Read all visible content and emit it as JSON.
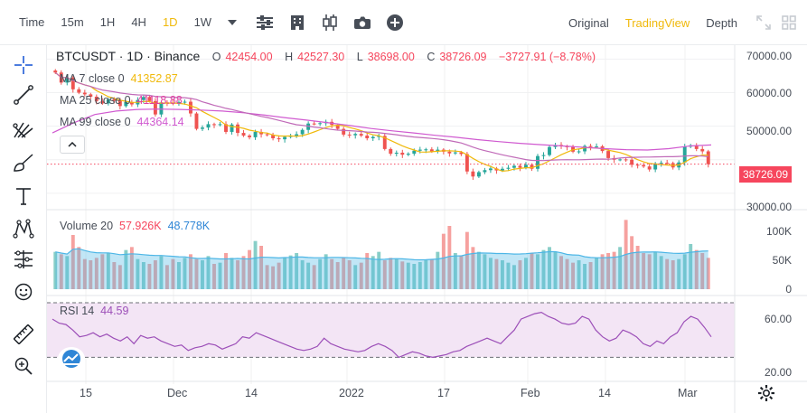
{
  "toolbar": {
    "intervals": [
      "Time",
      "15m",
      "1H",
      "4H",
      "1D",
      "1W"
    ],
    "active_interval": "1D",
    "views": [
      "Original",
      "TradingView",
      "Depth"
    ],
    "active_view": "TradingView",
    "tool_icons": [
      "dropdown-caret-icon",
      "indicator-settings-icon",
      "chart-type-icon",
      "candle-style-icon",
      "camera-icon",
      "add-icon"
    ],
    "right_icons": [
      "fullscreen-icon",
      "layout-grid-icon"
    ]
  },
  "drawing_tools": [
    "crosshair-icon",
    "trend-line-icon",
    "pitchfork-icon",
    "brush-icon",
    "text-icon",
    "pattern-icon",
    "prediction-icon",
    "emoji-icon",
    "ruler-icon",
    "zoom-in-icon"
  ],
  "legend": {
    "symbol": "BTCUSDT · 1D · Binance",
    "o_label": "O",
    "o_value": "42454.00",
    "h_label": "H",
    "h_value": "42527.30",
    "l_label": "L",
    "l_value": "38698.00",
    "c_label": "C",
    "c_value": "38726.09",
    "change": "−3727.91 (−8.78%)",
    "ma7_label": "MA 7 close 0",
    "ma7_value": "41352.87",
    "ma25_label": "MA 25 close 0",
    "ma25_value": "41118.88",
    "ma99_label": "MA 99 close 0",
    "ma99_value": "44364.14",
    "volume_label": "Volume 20",
    "volume_value1": "57.926K",
    "volume_value2": "48.778K",
    "rsi_label": "RSI 14",
    "rsi_value": "44.59"
  },
  "colors": {
    "up": "#26a69a",
    "down": "#ef5350",
    "ma7": "#f0b90b",
    "ma25": "#e040a0",
    "ma99": "#d05ad0",
    "vol_ma": "#4db6e6",
    "rsi": "#9c4fb8",
    "rsi_band": "#f3e5f5",
    "price_tag": "#f6465d"
  },
  "price_axis": {
    "ticks": [
      "70000.00",
      "60000.00",
      "50000.00",
      "30000.00"
    ],
    "current": "38726.09"
  },
  "volume_axis": {
    "ticks": [
      "100K",
      "50K",
      "0"
    ]
  },
  "rsi_axis": {
    "ticks": [
      "60.00",
      "20.00"
    ]
  },
  "time_axis": {
    "ticks": [
      "15",
      "Dec",
      "14",
      "2022",
      "17",
      "Feb",
      "14",
      "Mar"
    ]
  },
  "chart_data": {
    "type": "candlestick",
    "closes": [
      66000,
      63000,
      64500,
      61000,
      60000,
      59500,
      58800,
      57500,
      56800,
      58000,
      57600,
      56000,
      57200,
      56500,
      57800,
      58700,
      57500,
      53500,
      57100,
      57000,
      56700,
      57200,
      57300,
      53800,
      49200,
      49600,
      50600,
      50400,
      50600,
      48300,
      50500,
      48000,
      47200,
      46700,
      48300,
      47600,
      47400,
      46400,
      46100,
      46800,
      47100,
      47600,
      48900,
      50800,
      50700,
      50900,
      51300,
      50400,
      49200,
      47500,
      47300,
      47700,
      47200,
      46400,
      46800,
      47100,
      43200,
      41800,
      42100,
      41500,
      41800,
      42700,
      43000,
      43100,
      42500,
      43000,
      42400,
      41900,
      42200,
      41700,
      36500,
      35000,
      36300,
      36900,
      37400,
      36800,
      37300,
      37600,
      38200,
      37600,
      38500,
      37300,
      41100,
      41400,
      43800,
      44400,
      44000,
      43800,
      42400,
      42500,
      44100,
      43800,
      44000,
      42600,
      40500,
      40000,
      40100,
      40000,
      38500,
      38400,
      38000,
      37100,
      38900,
      39100,
      39000,
      37700,
      39200,
      43900,
      44300,
      43200,
      42500,
      38700
    ],
    "ma99": [
      48000,
      51000,
      53500,
      54500,
      55000,
      55100,
      55000,
      54800,
      54500,
      54000,
      53300,
      52500,
      51800,
      51000,
      50200,
      49300,
      48600,
      48000,
      47300,
      46700,
      46000,
      45400,
      44900,
      44500,
      44100,
      43700,
      43300,
      43000,
      42900,
      43300,
      44100,
      44400
    ],
    "volume": [
      62,
      58,
      55,
      90,
      70,
      50,
      48,
      52,
      58,
      60,
      45,
      40,
      65,
      70,
      50,
      45,
      42,
      48,
      55,
      40,
      50,
      45,
      52,
      58,
      50,
      48,
      55,
      42,
      44,
      60,
      52,
      48,
      55,
      65,
      80,
      72,
      40,
      38,
      44,
      52,
      56,
      60,
      48,
      44,
      40,
      50,
      58,
      50,
      45,
      52,
      48,
      40,
      44,
      60,
      55,
      62,
      48,
      52,
      50,
      46,
      44,
      42,
      45,
      48,
      50,
      62,
      92,
      105,
      60,
      55,
      95,
      70,
      62,
      58,
      52,
      50,
      48,
      44,
      40,
      48,
      52,
      60,
      58,
      65,
      70,
      62,
      55,
      50,
      44,
      48,
      42,
      45,
      52,
      58,
      60,
      62,
      70,
      115,
      88,
      72,
      60,
      58,
      62,
      55,
      50,
      48,
      50,
      58,
      75,
      65,
      60,
      52
    ],
    "rsi": [
      58,
      55,
      54,
      50,
      45,
      46,
      48,
      45,
      47,
      44,
      42,
      45,
      40,
      46,
      44,
      45,
      42,
      40,
      38,
      39,
      35,
      37,
      38,
      40,
      39,
      36,
      38,
      40,
      45,
      44,
      48,
      46,
      44,
      42,
      40,
      38,
      36,
      35,
      36,
      38,
      44,
      40,
      38,
      36,
      35,
      34,
      35,
      38,
      40,
      38,
      35,
      30,
      32,
      34,
      33,
      31,
      30,
      31,
      32,
      34,
      35,
      38,
      40,
      42,
      44,
      42,
      40,
      45,
      50,
      58,
      60,
      62,
      63,
      60,
      58,
      55,
      54,
      55,
      60,
      58,
      50,
      45,
      42,
      44,
      50,
      48,
      45,
      40,
      38,
      42,
      40,
      45,
      48,
      56,
      60,
      58,
      52,
      45
    ],
    "price_ylim": [
      27000,
      72000
    ],
    "volume_ylim": [
      0,
      120
    ],
    "rsi_ylim": [
      15,
      70
    ],
    "rsi_bands": [
      70,
      30
    ]
  }
}
